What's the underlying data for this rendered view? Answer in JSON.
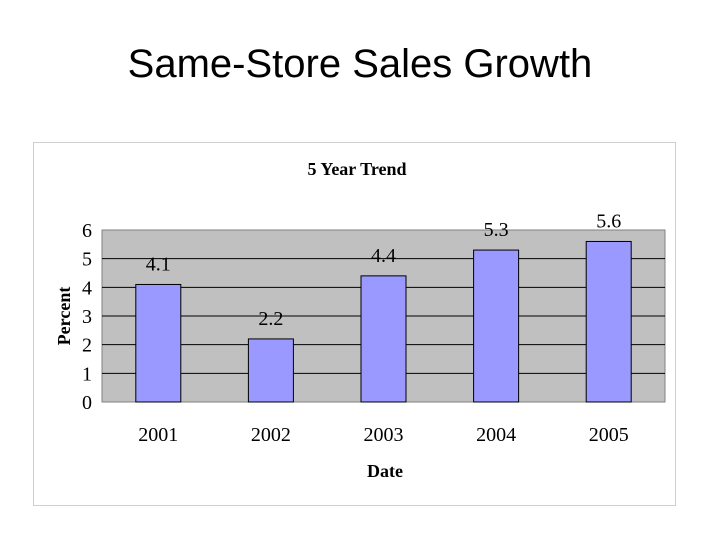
{
  "slide": {
    "title": "Same-Store Sales Growth"
  },
  "chart_data": {
    "type": "bar",
    "title": "5 Year Trend",
    "xlabel": "Date",
    "ylabel": "Percent",
    "categories": [
      "2001",
      "2002",
      "2003",
      "2004",
      "2005"
    ],
    "values": [
      4.1,
      2.2,
      4.4,
      5.3,
      5.6
    ],
    "data_labels": [
      "4.1",
      "2.2",
      "4.4",
      "5.3",
      "5.6"
    ],
    "ylim": [
      0,
      6
    ],
    "yticks": [
      "0",
      "1",
      "2",
      "3",
      "4",
      "5",
      "6"
    ],
    "grid": true,
    "legend": "none",
    "colors": {
      "bar_fill": "#9999ff",
      "bar_stroke": "#000000",
      "plot_background": "#c0c0c0",
      "gridline": "#000000"
    }
  }
}
